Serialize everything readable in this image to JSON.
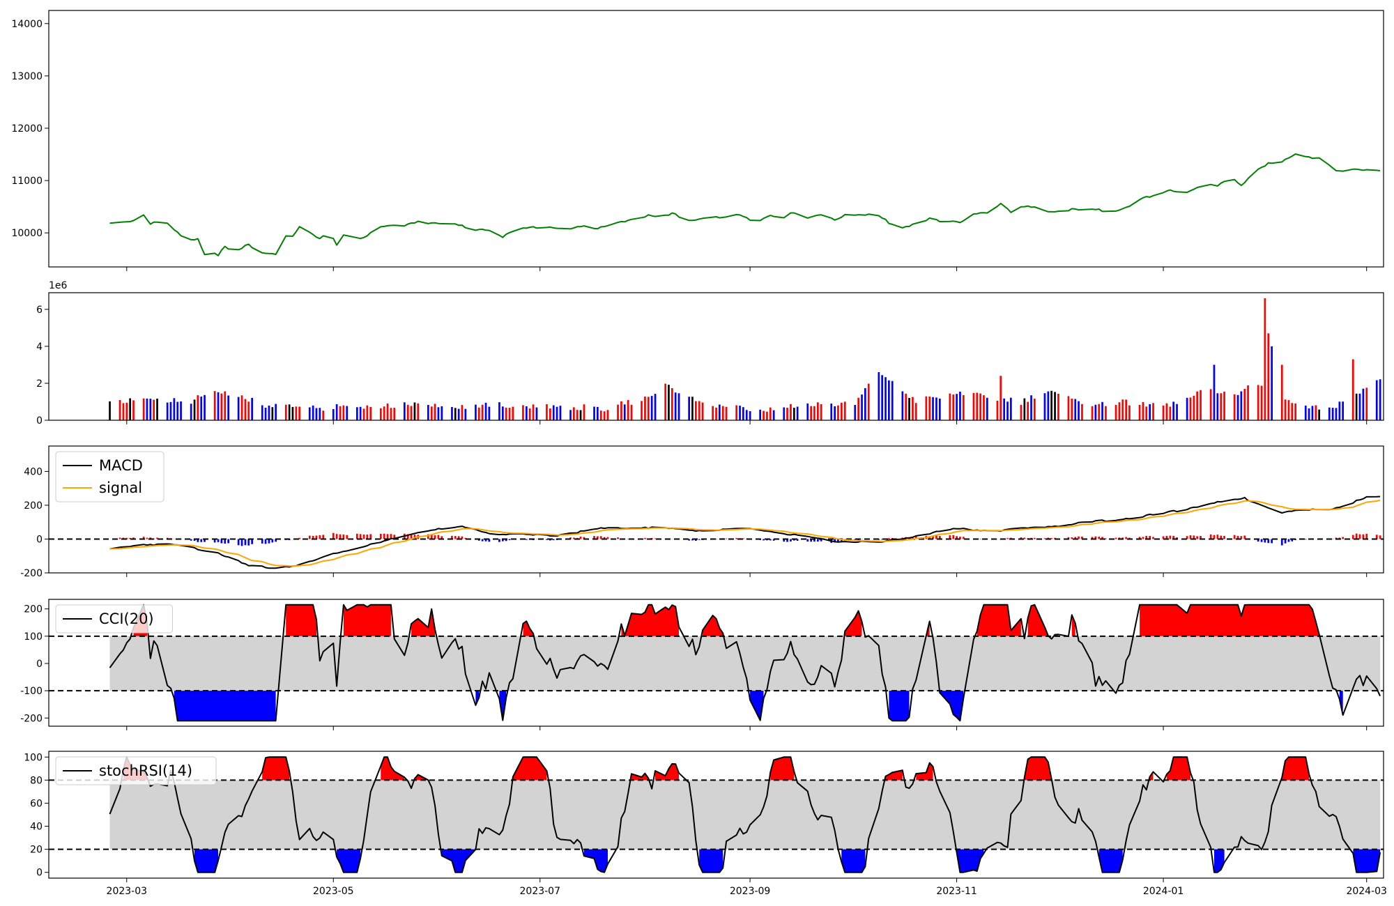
{
  "chart_data": [
    {
      "type": "line",
      "panel": "price",
      "colors": {
        "line": "#008000"
      },
      "x_range": [
        "2023-02-06",
        "2024-03-06"
      ],
      "ylim": [
        9350,
        14250
      ],
      "yticks": [
        10000,
        11000,
        12000,
        13000,
        14000
      ],
      "keyframes": [
        [
          "2023-02-24",
          10180
        ],
        [
          "2023-02-28",
          10220
        ],
        [
          "2023-03-03",
          10240
        ],
        [
          "2023-03-04",
          10380
        ],
        [
          "2023-03-06",
          10350
        ],
        [
          "2023-03-08",
          10180
        ],
        [
          "2023-03-12",
          10230
        ],
        [
          "2023-03-15",
          10050
        ],
        [
          "2023-03-18",
          9880
        ],
        [
          "2023-03-22",
          9890
        ],
        [
          "2023-03-24",
          9590
        ],
        [
          "2023-03-26",
          9640
        ],
        [
          "2023-03-28",
          9590
        ],
        [
          "2023-03-30",
          9720
        ],
        [
          "2023-04-02",
          9620
        ],
        [
          "2023-04-06",
          9780
        ],
        [
          "2023-04-08",
          9640
        ],
        [
          "2023-04-14",
          9610
        ],
        [
          "2023-04-17",
          9950
        ],
        [
          "2023-04-19",
          9930
        ],
        [
          "2023-04-21",
          10100
        ],
        [
          "2023-04-27",
          9880
        ],
        [
          "2023-04-30",
          10010
        ],
        [
          "2023-05-02",
          9790
        ],
        [
          "2023-05-04",
          9960
        ],
        [
          "2023-05-10",
          9900
        ],
        [
          "2023-05-15",
          10110
        ],
        [
          "2023-05-22",
          10150
        ],
        [
          "2023-05-26",
          10230
        ],
        [
          "2023-06-02",
          10160
        ],
        [
          "2023-06-06",
          10160
        ],
        [
          "2023-06-12",
          10070
        ],
        [
          "2023-06-16",
          10070
        ],
        [
          "2023-06-20",
          9930
        ],
        [
          "2023-06-25",
          10070
        ],
        [
          "2023-07-02",
          10130
        ],
        [
          "2023-07-08",
          10080
        ],
        [
          "2023-07-14",
          10120
        ],
        [
          "2023-07-18",
          10070
        ],
        [
          "2023-07-24",
          10210
        ],
        [
          "2023-07-28",
          10260
        ],
        [
          "2023-08-02",
          10330
        ],
        [
          "2023-08-05",
          10270
        ],
        [
          "2023-08-09",
          10360
        ],
        [
          "2023-08-15",
          10240
        ],
        [
          "2023-08-20",
          10320
        ],
        [
          "2023-08-23",
          10280
        ],
        [
          "2023-08-28",
          10340
        ],
        [
          "2023-09-03",
          10230
        ],
        [
          "2023-09-07",
          10350
        ],
        [
          "2023-09-10",
          10290
        ],
        [
          "2023-09-14",
          10380
        ],
        [
          "2023-09-18",
          10270
        ],
        [
          "2023-09-22",
          10360
        ],
        [
          "2023-09-26",
          10260
        ],
        [
          "2023-09-30",
          10380
        ],
        [
          "2023-10-04",
          10330
        ],
        [
          "2023-10-08",
          10360
        ],
        [
          "2023-10-12",
          10200
        ],
        [
          "2023-10-16",
          10100
        ],
        [
          "2023-10-20",
          10190
        ],
        [
          "2023-10-24",
          10280
        ],
        [
          "2023-10-28",
          10190
        ],
        [
          "2023-11-02",
          10210
        ],
        [
          "2023-11-06",
          10380
        ],
        [
          "2023-11-10",
          10400
        ],
        [
          "2023-11-14",
          10550
        ],
        [
          "2023-11-17",
          10390
        ],
        [
          "2023-11-20",
          10480
        ],
        [
          "2023-11-24",
          10500
        ],
        [
          "2023-11-28",
          10410
        ],
        [
          "2023-12-05",
          10440
        ],
        [
          "2023-12-12",
          10430
        ],
        [
          "2023-12-18",
          10440
        ],
        [
          "2023-12-22",
          10520
        ],
        [
          "2023-12-26",
          10660
        ],
        [
          "2023-12-30",
          10700
        ],
        [
          "2024-01-03",
          10800
        ],
        [
          "2024-01-08",
          10790
        ],
        [
          "2024-01-13",
          10930
        ],
        [
          "2024-01-17",
          10890
        ],
        [
          "2024-01-21",
          11050
        ],
        [
          "2024-01-24",
          10900
        ],
        [
          "2024-01-28",
          11180
        ],
        [
          "2024-02-01",
          11340
        ],
        [
          "2024-02-05",
          11350
        ],
        [
          "2024-02-09",
          11500
        ],
        [
          "2024-02-13",
          11440
        ],
        [
          "2024-02-17",
          11450
        ],
        [
          "2024-02-21",
          11190
        ],
        [
          "2024-02-25",
          11210
        ],
        [
          "2024-03-03",
          11180
        ]
      ]
    },
    {
      "type": "bar",
      "panel": "volume",
      "scale_label": "1e6",
      "colors": {
        "up": "#ff0000",
        "down": "#0000ff",
        "flat": "#000000"
      },
      "ylim": [
        0,
        6.9
      ],
      "yticks": [
        0,
        2,
        4,
        6
      ],
      "keyframes": [
        [
          "2023-02-24",
          0.8
        ],
        [
          "2023-03-06",
          1.1
        ],
        [
          "2023-03-20",
          1.0
        ],
        [
          "2023-03-28",
          1.6
        ],
        [
          "2023-04-10",
          0.8
        ],
        [
          "2023-04-25",
          0.6
        ],
        [
          "2023-05-10",
          0.7
        ],
        [
          "2023-05-25",
          0.8
        ],
        [
          "2023-06-08",
          0.7
        ],
        [
          "2023-06-20",
          0.8
        ],
        [
          "2023-07-05",
          0.7
        ],
        [
          "2023-07-20",
          0.6
        ],
        [
          "2023-08-03",
          1.2
        ],
        [
          "2023-08-07",
          1.8
        ],
        [
          "2023-08-20",
          0.7
        ],
        [
          "2023-09-05",
          0.5
        ],
        [
          "2023-09-20",
          0.8
        ],
        [
          "2023-10-02",
          0.8
        ],
        [
          "2023-10-08",
          2.6
        ],
        [
          "2023-10-20",
          1.0
        ],
        [
          "2023-11-01",
          1.4
        ],
        [
          "2023-11-10",
          1.2
        ],
        [
          "2023-11-20",
          0.9
        ],
        [
          "2023-11-28",
          1.5
        ],
        [
          "2023-12-08",
          0.8
        ],
        [
          "2023-12-20",
          0.9
        ],
        [
          "2024-01-05",
          0.8
        ],
        [
          "2024-01-15",
          1.7
        ],
        [
          "2024-01-22",
          1.2
        ],
        [
          "2024-01-28",
          2.0
        ],
        [
          "2024-02-05",
          1.0
        ],
        [
          "2024-02-15",
          0.6
        ],
        [
          "2024-02-25",
          0.9
        ],
        [
          "2024-03-05",
          2.3
        ]
      ]
    },
    {
      "type": "line",
      "panel": "macd",
      "colors": {
        "macd": "#000000",
        "signal": "#ffa500",
        "hist_pos": "#ff0000",
        "hist_neg": "#0000ff"
      },
      "ylim": [
        -200,
        550
      ],
      "yticks": [
        -200,
        0,
        200,
        400
      ],
      "legend": [
        "MACD",
        "signal"
      ],
      "macd_keyframes": [
        [
          "2023-02-24",
          -60
        ],
        [
          "2023-03-06",
          -30
        ],
        [
          "2023-03-16",
          -35
        ],
        [
          "2023-03-28",
          -80
        ],
        [
          "2023-04-06",
          -160
        ],
        [
          "2023-04-14",
          -170
        ],
        [
          "2023-04-22",
          -150
        ],
        [
          "2023-05-02",
          -80
        ],
        [
          "2023-05-15",
          -20
        ],
        [
          "2023-05-28",
          50
        ],
        [
          "2023-06-08",
          70
        ],
        [
          "2023-06-18",
          30
        ],
        [
          "2023-07-05",
          20
        ],
        [
          "2023-07-18",
          60
        ],
        [
          "2023-08-01",
          70
        ],
        [
          "2023-08-18",
          50
        ],
        [
          "2023-09-02",
          60
        ],
        [
          "2023-09-12",
          30
        ],
        [
          "2023-09-24",
          -10
        ],
        [
          "2023-10-10",
          -20
        ],
        [
          "2023-10-20",
          20
        ],
        [
          "2023-11-01",
          60
        ],
        [
          "2023-11-14",
          50
        ],
        [
          "2023-12-01",
          80
        ],
        [
          "2023-12-20",
          120
        ],
        [
          "2024-01-01",
          150
        ],
        [
          "2024-01-15",
          210
        ],
        [
          "2024-01-25",
          240
        ],
        [
          "2024-02-05",
          160
        ],
        [
          "2024-02-20",
          180
        ],
        [
          "2024-03-02",
          250
        ]
      ]
    },
    {
      "type": "line",
      "panel": "cci",
      "colors": {
        "line": "#000000",
        "band": "#d3d3d3",
        "over": "#ff0000",
        "under": "#0000ff"
      },
      "ylim": [
        -230,
        235
      ],
      "yticks": [
        -200,
        -100,
        0,
        100,
        200
      ],
      "levels": [
        100,
        -100
      ],
      "legend": [
        "CCI(20)"
      ]
    },
    {
      "type": "line",
      "panel": "stochrsi",
      "colors": {
        "line": "#000000",
        "band": "#d3d3d3",
        "over": "#ff0000",
        "under": "#0000ff"
      },
      "ylim": [
        -5,
        105
      ],
      "yticks": [
        0,
        20,
        40,
        60,
        80,
        100
      ],
      "levels": [
        80,
        20
      ],
      "legend": [
        "stochRSI(14)"
      ],
      "xticks": [
        "2023-03",
        "2023-05",
        "2023-07",
        "2023-09",
        "2023-11",
        "2024-01",
        "2024-03"
      ]
    }
  ]
}
